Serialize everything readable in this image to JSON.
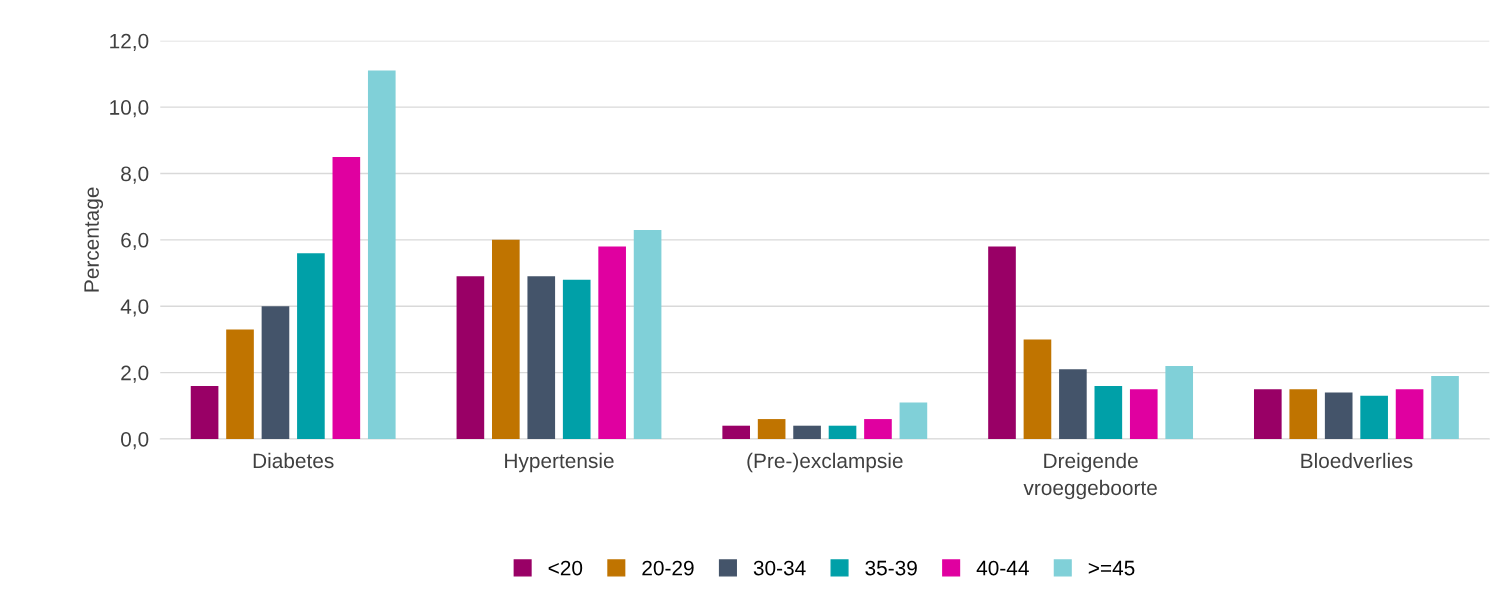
{
  "chart_data": {
    "type": "bar",
    "ylabel": "Percentage",
    "categories": [
      "Diabetes",
      "Hypertensie",
      "(Pre-)exclampsie",
      "Dreigende\nvroeggeboorte",
      "Bloedverlies"
    ],
    "series": [
      {
        "name": "<20",
        "color": "#990066",
        "values": [
          1.6,
          4.9,
          0.4,
          5.8,
          1.5
        ]
      },
      {
        "name": "20-29",
        "color": "#c07400",
        "values": [
          3.3,
          6.0,
          0.6,
          3.0,
          1.5
        ]
      },
      {
        "name": "30-34",
        "color": "#44546a",
        "values": [
          4.0,
          4.9,
          0.4,
          2.1,
          1.4
        ]
      },
      {
        "name": "35-39",
        "color": "#00a0a8",
        "values": [
          5.6,
          4.8,
          0.4,
          1.6,
          1.3
        ]
      },
      {
        "name": "40-44",
        "color": "#e000a0",
        "values": [
          8.5,
          5.8,
          0.6,
          1.5,
          1.5
        ]
      },
      {
        "name": ">=45",
        "color": "#80d0d8",
        "values": [
          11.1,
          6.3,
          1.1,
          2.2,
          1.9
        ]
      }
    ],
    "ylim": [
      0,
      12
    ],
    "yticks": [
      {
        "value": 0,
        "label": "0,0"
      },
      {
        "value": 2,
        "label": "2,0"
      },
      {
        "value": 4,
        "label": "4,0"
      },
      {
        "value": 6,
        "label": "6,0"
      },
      {
        "value": 8,
        "label": "8,0"
      },
      {
        "value": 10,
        "label": "10,0"
      },
      {
        "value": 12,
        "label": "12,0"
      }
    ],
    "grid": "y",
    "legend": "bottom"
  }
}
